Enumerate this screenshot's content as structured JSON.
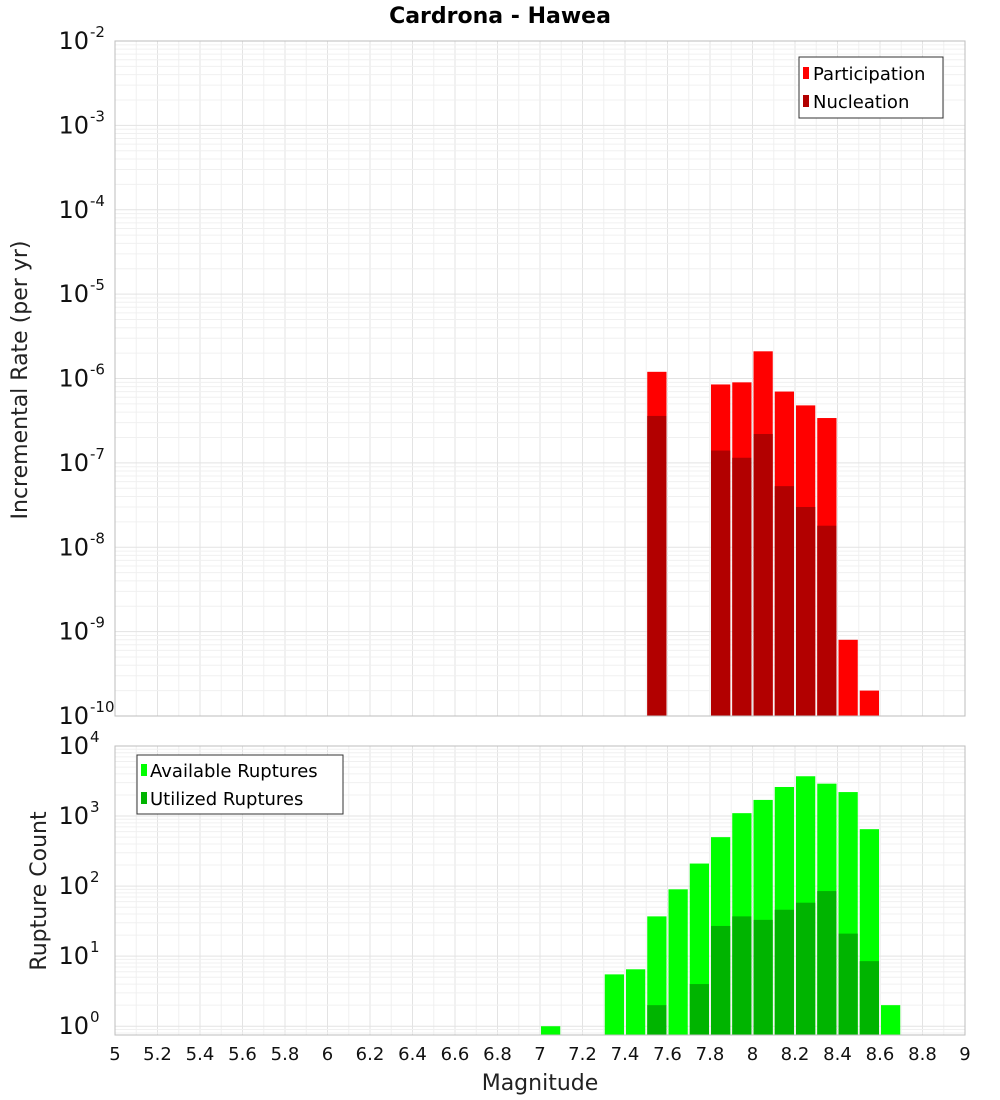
{
  "title": "Cardrona - Hawea",
  "colors": {
    "participation": "#ff0000",
    "nucleation": "#b20000",
    "available": "#00ff00",
    "utilized": "#00b400"
  },
  "chart_data": [
    {
      "type": "bar",
      "title": "Cardrona - Hawea",
      "xlabel": "Magnitude",
      "ylabel": "Incremental Rate (per yr)",
      "yscale": "log",
      "ylim_exponents": [
        -10,
        -2
      ],
      "ytick_base": "10",
      "ytick_exponents": [
        "-2",
        "-3",
        "-4",
        "-5",
        "-6",
        "-7",
        "-8",
        "-9",
        "-10"
      ],
      "xlim": [
        5,
        9
      ],
      "bin_width": 0.1,
      "legend": {
        "position": "top-right",
        "entries": [
          "Participation",
          "Nucleation"
        ]
      },
      "x": [
        7.55,
        7.85,
        7.95,
        8.05,
        8.15,
        8.25,
        8.35,
        8.45,
        8.55
      ],
      "series": [
        {
          "name": "Participation",
          "values": [
            1.2e-06,
            8.5e-07,
            9e-07,
            2.1e-06,
            7e-07,
            4.8e-07,
            3.4e-07,
            8e-10,
            2e-10
          ]
        },
        {
          "name": "Nucleation",
          "values": [
            3.6e-07,
            1.4e-07,
            1.15e-07,
            2.2e-07,
            5.3e-08,
            3e-08,
            1.8e-08,
            null,
            null
          ]
        }
      ]
    },
    {
      "type": "bar",
      "xlabel": "Magnitude",
      "ylabel": "Rupture Count",
      "yscale": "log",
      "ylim": [
        0.75,
        10000
      ],
      "ytick_base": "10",
      "ytick_exponents": [
        "4",
        "3",
        "2",
        "1",
        "0"
      ],
      "xlim": [
        5,
        9
      ],
      "xticks": [
        "5",
        "5.2",
        "5.4",
        "5.6",
        "5.8",
        "6",
        "6.2",
        "6.4",
        "6.6",
        "6.8",
        "7",
        "7.2",
        "7.4",
        "7.6",
        "7.8",
        "8",
        "8.2",
        "8.4",
        "8.6",
        "8.8",
        "9"
      ],
      "bin_width": 0.1,
      "legend": {
        "position": "top-left",
        "entries": [
          "Available Ruptures",
          "Utilized Ruptures"
        ]
      },
      "x": [
        7.05,
        7.35,
        7.45,
        7.55,
        7.65,
        7.75,
        7.85,
        7.95,
        8.05,
        8.15,
        8.25,
        8.35,
        8.45,
        8.55,
        8.65
      ],
      "series": [
        {
          "name": "Available Ruptures",
          "values": [
            1,
            5.5,
            6.5,
            37,
            90,
            210,
            500,
            1100,
            1700,
            2600,
            3700,
            2900,
            2200,
            650,
            2
          ]
        },
        {
          "name": "Utilized Ruptures",
          "values": [
            null,
            null,
            null,
            2,
            null,
            4,
            27,
            37,
            33,
            46,
            58,
            85,
            21,
            8.5,
            null
          ]
        }
      ]
    }
  ]
}
